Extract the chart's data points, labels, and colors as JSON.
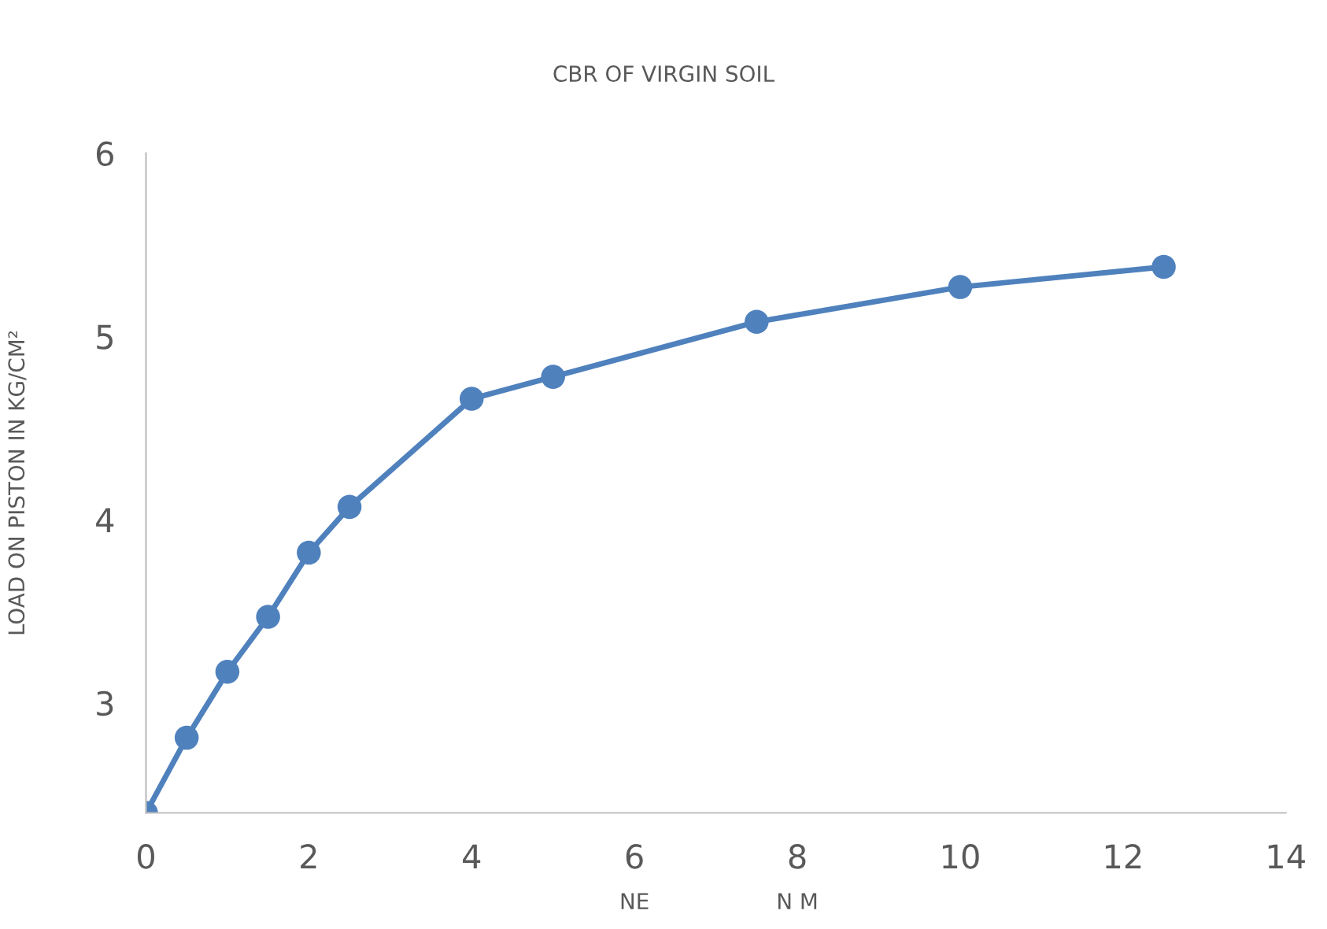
{
  "chart_data": {
    "type": "line",
    "title": "CBR OF VIRGIN SOIL",
    "ylabel": "LOAD ON PISTON IN KG/CM²",
    "annotations": [
      "NE",
      "N M"
    ],
    "x": [
      0,
      0.5,
      1,
      1.5,
      2,
      2.5,
      4,
      5,
      7.5,
      10,
      12.5
    ],
    "series": [
      {
        "color": "#4f81bd",
        "values": [
          2.4,
          2.81,
          3.17,
          3.47,
          3.82,
          4.07,
          4.66,
          4.78,
          5.08,
          5.27,
          5.38
        ]
      }
    ],
    "xlim": [
      0,
      14
    ],
    "xticks": [
      0,
      2,
      4,
      6,
      8,
      10,
      12,
      14
    ],
    "ylim": [
      2.4,
      6
    ],
    "yticks": [
      3,
      4,
      5,
      6
    ],
    "grid": false,
    "legend": false,
    "marker": "circle",
    "line_style": "solid"
  }
}
